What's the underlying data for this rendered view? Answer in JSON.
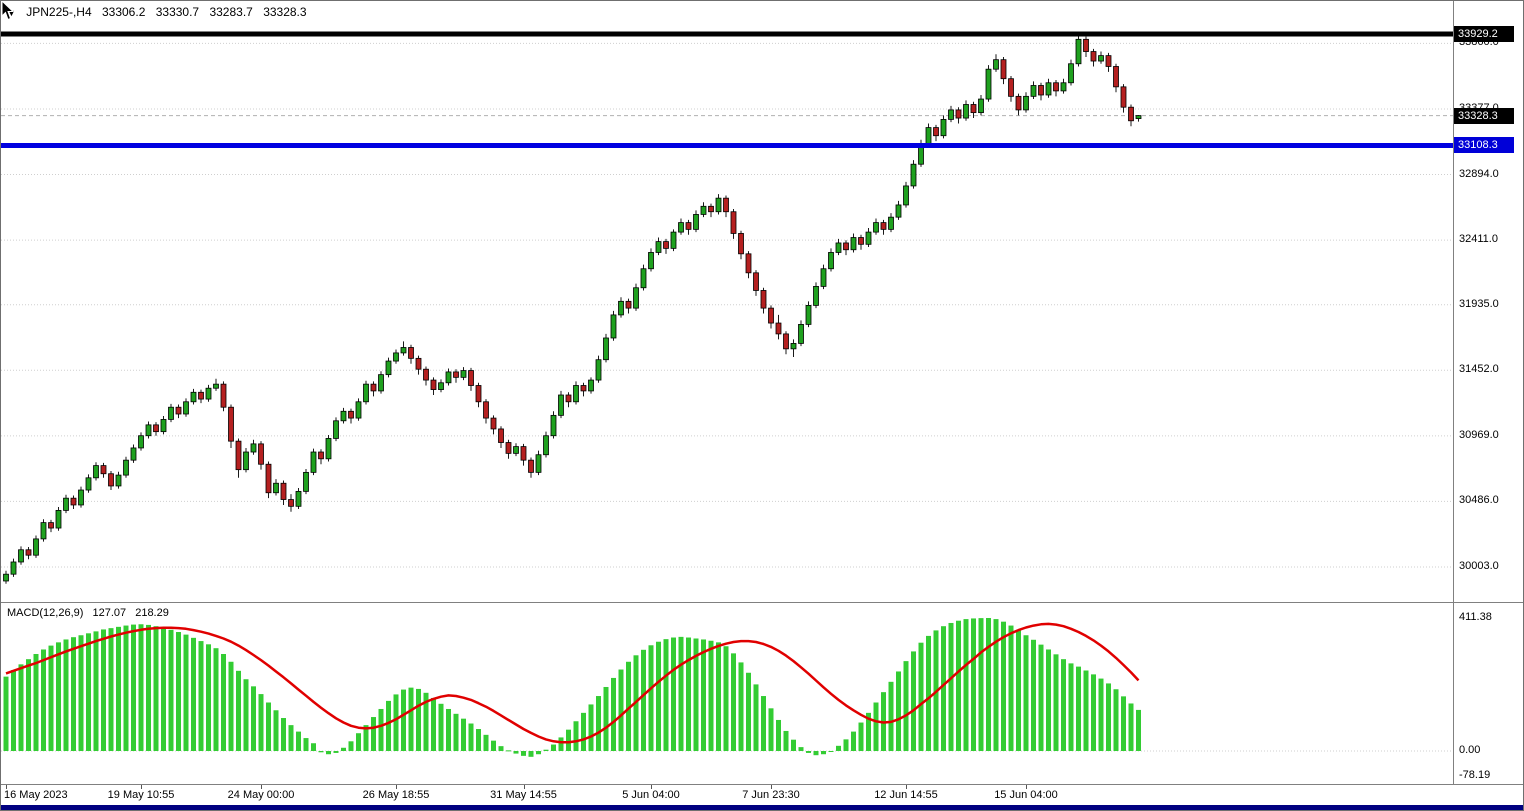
{
  "header": {
    "symbol_period": "JPN225-,H4",
    "open": "33306.2",
    "high": "33330.7",
    "low": "33283.7",
    "close": "33328.3"
  },
  "colors": {
    "bull": "#1fa11f",
    "bear": "#b52020",
    "wick": "#1a1a1a",
    "macd_hist": "#33cc33",
    "macd_signal": "#e00000",
    "blue_line": "#0000e0",
    "grid": "#cfcfcf",
    "box_black": "#000000",
    "box_blue": "#0000d8",
    "bottom_bar": "#000080"
  },
  "chart_data": [
    {
      "type": "candlestick",
      "title": "JPN225-,H4",
      "symbol": "JPN225-",
      "timeframe": "H4",
      "grid": true,
      "ylim": [
        29900,
        33980
      ],
      "y_ticks": [
        33860.0,
        33377.0,
        32894.0,
        32411.0,
        31935.0,
        31452.0,
        30969.0,
        30486.0,
        30003.0
      ],
      "levels": {
        "resistance": 33929.2,
        "bid": 33328.3,
        "support": 33108.3
      },
      "x_ticks": [
        {
          "label": "16 May 2023",
          "index": 0
        },
        {
          "label": "19 May 10:55",
          "index": 18
        },
        {
          "label": "24 May 00:00",
          "index": 34
        },
        {
          "label": "26 May 18:55",
          "index": 52
        },
        {
          "label": "31 May 14:55",
          "index": 69
        },
        {
          "label": "5 Jun 04:00",
          "index": 86
        },
        {
          "label": "7 Jun 23:30",
          "index": 102
        },
        {
          "label": "12 Jun 14:55",
          "index": 120
        },
        {
          "label": "15 Jun 04:00",
          "index": 136
        }
      ],
      "ohlc": [
        [
          29900,
          29975,
          29880,
          29950
        ],
        [
          29950,
          30065,
          29930,
          30040
        ],
        [
          30040,
          30155,
          30020,
          30130
        ],
        [
          30130,
          30150,
          30060,
          30090
        ],
        [
          30090,
          30235,
          30070,
          30210
        ],
        [
          30210,
          30355,
          30190,
          30330
        ],
        [
          30330,
          30350,
          30260,
          30290
        ],
        [
          30290,
          30445,
          30270,
          30420
        ],
        [
          30420,
          30535,
          30400,
          30510
        ],
        [
          30510,
          30530,
          30430,
          30460
        ],
        [
          30460,
          30595,
          30440,
          30570
        ],
        [
          30570,
          30685,
          30550,
          30660
        ],
        [
          30660,
          30775,
          30640,
          30750
        ],
        [
          30750,
          30770,
          30660,
          30690
        ],
        [
          30690,
          30710,
          30570,
          30600
        ],
        [
          30600,
          30705,
          30580,
          30680
        ],
        [
          30680,
          30815,
          30660,
          30790
        ],
        [
          30790,
          30905,
          30770,
          30880
        ],
        [
          30880,
          30995,
          30860,
          30970
        ],
        [
          30970,
          31075,
          30950,
          31050
        ],
        [
          31050,
          31070,
          30970,
          31000
        ],
        [
          31000,
          31115,
          30980,
          31090
        ],
        [
          31090,
          31205,
          31070,
          31180
        ],
        [
          31180,
          31200,
          31100,
          31130
        ],
        [
          31130,
          31245,
          31110,
          31220
        ],
        [
          31220,
          31315,
          31200,
          31290
        ],
        [
          31290,
          31310,
          31210,
          31240
        ],
        [
          31240,
          31345,
          31220,
          31320
        ],
        [
          31320,
          31390,
          31300,
          31350
        ],
        [
          31350,
          31370,
          31150,
          31180
        ],
        [
          31180,
          31200,
          30880,
          30930
        ],
        [
          30930,
          30950,
          30660,
          30720
        ],
        [
          30720,
          30880,
          30700,
          30850
        ],
        [
          30850,
          30940,
          30830,
          30910
        ],
        [
          30910,
          30930,
          30720,
          30760
        ],
        [
          30760,
          30780,
          30510,
          30550
        ],
        [
          30550,
          30650,
          30530,
          30620
        ],
        [
          30620,
          30640,
          30460,
          30500
        ],
        [
          30500,
          30540,
          30410,
          30450
        ],
        [
          30450,
          30585,
          30430,
          30560
        ],
        [
          30560,
          30725,
          30540,
          30700
        ],
        [
          30700,
          30875,
          30680,
          30850
        ],
        [
          30850,
          30870,
          30760,
          30800
        ],
        [
          30800,
          30975,
          30780,
          30950
        ],
        [
          30950,
          31105,
          30930,
          31080
        ],
        [
          31080,
          31175,
          31060,
          31150
        ],
        [
          31150,
          31170,
          31060,
          31100
        ],
        [
          31100,
          31245,
          31080,
          31220
        ],
        [
          31220,
          31375,
          31200,
          31350
        ],
        [
          31350,
          31370,
          31260,
          31300
        ],
        [
          31300,
          31445,
          31280,
          31420
        ],
        [
          31420,
          31545,
          31400,
          31520
        ],
        [
          31520,
          31605,
          31500,
          31580
        ],
        [
          31580,
          31665,
          31560,
          31620
        ],
        [
          31620,
          31640,
          31500,
          31540
        ],
        [
          31540,
          31560,
          31420,
          31460
        ],
        [
          31460,
          31480,
          31340,
          31380
        ],
        [
          31380,
          31400,
          31270,
          31310
        ],
        [
          31310,
          31385,
          31290,
          31360
        ],
        [
          31360,
          31465,
          31340,
          31440
        ],
        [
          31440,
          31460,
          31360,
          31400
        ],
        [
          31400,
          31475,
          31380,
          31450
        ],
        [
          31450,
          31470,
          31300,
          31340
        ],
        [
          31340,
          31360,
          31180,
          31220
        ],
        [
          31220,
          31240,
          31060,
          31100
        ],
        [
          31100,
          31120,
          30980,
          31020
        ],
        [
          31020,
          31040,
          30880,
          30920
        ],
        [
          30920,
          30940,
          30800,
          30840
        ],
        [
          30840,
          30915,
          30820,
          30890
        ],
        [
          30890,
          30910,
          30750,
          30790
        ],
        [
          30790,
          30810,
          30660,
          30700
        ],
        [
          30700,
          30860,
          30680,
          30830
        ],
        [
          30830,
          31000,
          30810,
          30970
        ],
        [
          30970,
          31150,
          30950,
          31120
        ],
        [
          31120,
          31300,
          31100,
          31270
        ],
        [
          31270,
          31290,
          31180,
          31220
        ],
        [
          31220,
          31370,
          31200,
          31340
        ],
        [
          31340,
          31360,
          31260,
          31300
        ],
        [
          31300,
          31400,
          31280,
          31380
        ],
        [
          31380,
          31560,
          31360,
          31530
        ],
        [
          31530,
          31720,
          31510,
          31690
        ],
        [
          31690,
          31890,
          31670,
          31860
        ],
        [
          31860,
          31990,
          31840,
          31960
        ],
        [
          31960,
          31980,
          31870,
          31910
        ],
        [
          31910,
          32090,
          31890,
          32060
        ],
        [
          32060,
          32230,
          32040,
          32200
        ],
        [
          32200,
          32350,
          32180,
          32320
        ],
        [
          32320,
          32430,
          32300,
          32400
        ],
        [
          32400,
          32420,
          32310,
          32350
        ],
        [
          32350,
          32490,
          32330,
          32470
        ],
        [
          32470,
          32570,
          32450,
          32540
        ],
        [
          32540,
          32560,
          32450,
          32490
        ],
        [
          32490,
          32630,
          32470,
          32600
        ],
        [
          32600,
          32690,
          32580,
          32660
        ],
        [
          32660,
          32680,
          32580,
          32620
        ],
        [
          32620,
          32750,
          32600,
          32720
        ],
        [
          32720,
          32740,
          32580,
          32620
        ],
        [
          32620,
          32640,
          32420,
          32460
        ],
        [
          32460,
          32480,
          32270,
          32310
        ],
        [
          32310,
          32330,
          32130,
          32170
        ],
        [
          32170,
          32190,
          32000,
          32040
        ],
        [
          32040,
          32060,
          31870,
          31910
        ],
        [
          31910,
          31930,
          31760,
          31800
        ],
        [
          31800,
          31860,
          31680,
          31720
        ],
        [
          31720,
          31740,
          31570,
          31610
        ],
        [
          31610,
          31680,
          31550,
          31650
        ],
        [
          31650,
          31820,
          31630,
          31790
        ],
        [
          31790,
          31960,
          31770,
          31930
        ],
        [
          31930,
          32100,
          31910,
          32070
        ],
        [
          32070,
          32230,
          32050,
          32200
        ],
        [
          32200,
          32350,
          32180,
          32320
        ],
        [
          32320,
          32420,
          32300,
          32390
        ],
        [
          32390,
          32410,
          32300,
          32340
        ],
        [
          32340,
          32460,
          32320,
          32430
        ],
        [
          32430,
          32450,
          32340,
          32380
        ],
        [
          32380,
          32500,
          32360,
          32470
        ],
        [
          32470,
          32570,
          32450,
          32540
        ],
        [
          32540,
          32560,
          32450,
          32490
        ],
        [
          32490,
          32610,
          32470,
          32580
        ],
        [
          32580,
          32700,
          32560,
          32670
        ],
        [
          32670,
          32840,
          32650,
          32810
        ],
        [
          32810,
          33000,
          32790,
          32970
        ],
        [
          32970,
          33150,
          32950,
          33120
        ],
        [
          33120,
          33270,
          33100,
          33240
        ],
        [
          33240,
          33260,
          33140,
          33180
        ],
        [
          33180,
          33330,
          33160,
          33300
        ],
        [
          33300,
          33400,
          33280,
          33370
        ],
        [
          33370,
          33390,
          33270,
          33310
        ],
        [
          33310,
          33440,
          33290,
          33410
        ],
        [
          33410,
          33430,
          33310,
          33350
        ],
        [
          33350,
          33480,
          33330,
          33450
        ],
        [
          33450,
          33700,
          33430,
          33670
        ],
        [
          33670,
          33780,
          33650,
          33740
        ],
        [
          33740,
          33760,
          33560,
          33600
        ],
        [
          33600,
          33620,
          33430,
          33470
        ],
        [
          33470,
          33490,
          33330,
          33370
        ],
        [
          33370,
          33500,
          33350,
          33470
        ],
        [
          33470,
          33580,
          33450,
          33550
        ],
        [
          33550,
          33570,
          33440,
          33480
        ],
        [
          33480,
          33600,
          33460,
          33570
        ],
        [
          33570,
          33590,
          33470,
          33510
        ],
        [
          33510,
          33600,
          33490,
          33570
        ],
        [
          33570,
          33740,
          33550,
          33710
        ],
        [
          33710,
          33925,
          33690,
          33890
        ],
        [
          33890,
          33910,
          33760,
          33800
        ],
        [
          33800,
          33820,
          33690,
          33730
        ],
        [
          33730,
          33800,
          33710,
          33770
        ],
        [
          33770,
          33790,
          33650,
          33690
        ],
        [
          33690,
          33710,
          33500,
          33540
        ],
        [
          33540,
          33560,
          33350,
          33390
        ],
        [
          33390,
          33410,
          33250,
          33290
        ],
        [
          33306.2,
          33330.7,
          33283.7,
          33328.3
        ]
      ]
    },
    {
      "type": "bar",
      "title": "MACD(12,26,9)",
      "indicator_label": "MACD(12,26,9)",
      "current_macd": 127.07,
      "current_signal": 218.29,
      "y_ticks": [
        411.38,
        0,
        -78.19
      ],
      "legend_position": "none",
      "histogram": [
        230,
        250,
        268,
        284,
        300,
        314,
        326,
        336,
        345,
        352,
        358,
        364,
        370,
        376,
        380,
        384,
        388,
        391,
        392,
        390,
        386,
        381,
        375,
        368,
        360,
        350,
        340,
        330,
        318,
        300,
        276,
        248,
        222,
        200,
        176,
        150,
        126,
        102,
        80,
        60,
        40,
        24,
        -4,
        -10,
        -6,
        10,
        30,
        55,
        80,
        105,
        130,
        155,
        175,
        190,
        196,
        192,
        180,
        164,
        146,
        130,
        115,
        100,
        85,
        68,
        50,
        32,
        15,
        2,
        -8,
        -15,
        -18,
        -10,
        4,
        20,
        42,
        66,
        92,
        118,
        144,
        170,
        198,
        226,
        252,
        276,
        296,
        313,
        327,
        338,
        346,
        351,
        353,
        351,
        348,
        345,
        341,
        336,
        324,
        302,
        274,
        242,
        206,
        170,
        132,
        96,
        62,
        35,
        12,
        -6,
        -13,
        -10,
        0,
        16,
        36,
        60,
        88,
        118,
        150,
        182,
        214,
        246,
        278,
        308,
        335,
        356,
        373,
        386,
        396,
        403,
        408,
        410,
        411,
        411.38,
        408,
        400,
        388,
        373,
        358,
        344,
        329,
        314,
        299,
        284,
        271,
        261,
        249,
        237,
        224,
        209,
        191,
        169,
        147,
        127.07
      ],
      "signal": [
        240,
        248,
        256,
        264,
        272,
        281,
        290,
        299,
        308,
        316,
        324,
        332,
        340,
        347,
        354,
        360,
        366,
        371,
        375,
        378,
        380,
        381,
        381,
        380,
        378,
        374,
        369,
        363,
        356,
        348,
        338,
        326,
        312,
        297,
        281,
        264,
        246,
        228,
        209,
        190,
        171,
        152,
        134,
        117,
        101,
        88,
        78,
        72,
        70,
        72,
        78,
        87,
        98,
        112,
        126,
        140,
        152,
        161,
        168,
        172,
        170,
        165,
        158,
        148,
        137,
        124,
        110,
        96,
        82,
        68,
        56,
        45,
        36,
        30,
        27,
        27,
        30,
        36,
        45,
        57,
        72,
        90,
        110,
        131,
        152,
        173,
        194,
        214,
        233,
        251,
        267,
        281,
        294,
        306,
        316,
        325,
        332,
        337,
        340,
        340,
        337,
        331,
        322,
        310,
        295,
        278,
        259,
        239,
        218,
        197,
        177,
        158,
        141,
        126,
        112,
        100,
        92,
        88,
        90,
        98,
        110,
        126,
        145,
        163,
        183,
        204,
        225,
        246,
        266,
        285,
        305,
        322,
        338,
        352,
        364,
        374,
        382,
        388,
        392,
        393,
        391,
        386,
        378,
        368,
        356,
        342,
        326,
        308,
        288,
        266,
        243,
        218.29
      ]
    }
  ]
}
